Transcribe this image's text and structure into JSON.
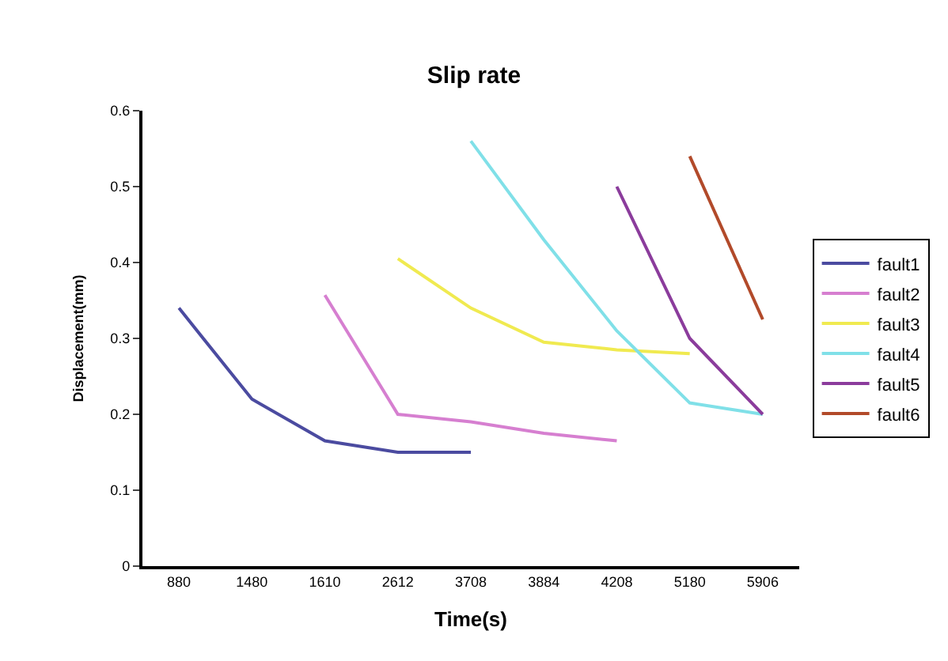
{
  "chart_data": {
    "type": "line",
    "title": "Slip rate",
    "xlabel": "Time(s)",
    "ylabel": "Displacement(mm)",
    "categories": [
      "880",
      "1480",
      "1610",
      "2612",
      "3708",
      "3884",
      "4208",
      "5180",
      "5906"
    ],
    "ylim": [
      0,
      0.6
    ],
    "yticks": [
      0,
      0.1,
      0.2,
      0.3,
      0.4,
      0.5,
      0.6
    ],
    "legend": "right",
    "marker": "none",
    "series": [
      {
        "name": "fault1",
        "color": "#4b4ba0",
        "values": [
          0.34,
          0.22,
          0.165,
          0.15,
          0.15,
          null,
          null,
          null,
          null
        ]
      },
      {
        "name": "fault2",
        "color": "#d67fd0",
        "values": [
          null,
          null,
          0.357,
          0.2,
          0.19,
          0.175,
          0.165,
          null,
          null
        ]
      },
      {
        "name": "fault3",
        "color": "#f0ea50",
        "values": [
          null,
          null,
          null,
          0.405,
          0.34,
          0.295,
          0.285,
          0.28,
          null
        ]
      },
      {
        "name": "fault4",
        "color": "#80e0e8",
        "values": [
          null,
          null,
          null,
          null,
          0.56,
          0.43,
          0.31,
          0.215,
          0.2
        ]
      },
      {
        "name": "fault5",
        "color": "#8b3c9c",
        "values": [
          null,
          null,
          null,
          null,
          null,
          null,
          0.5,
          0.3,
          0.2
        ]
      },
      {
        "name": "fault6",
        "color": "#b24a2a",
        "values": [
          null,
          null,
          null,
          null,
          null,
          null,
          null,
          0.54,
          0.325
        ]
      }
    ]
  }
}
